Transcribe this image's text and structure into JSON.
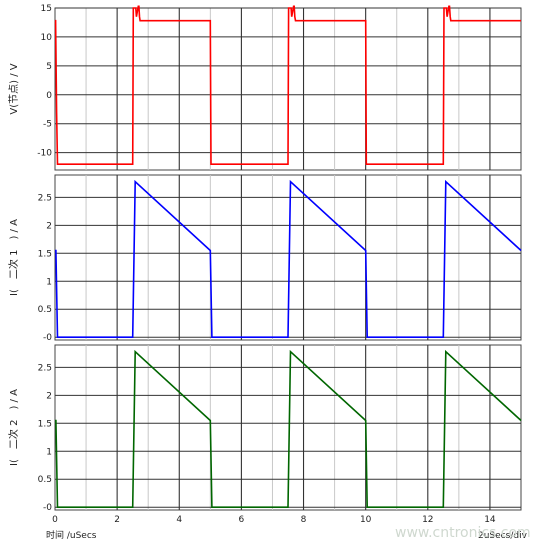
{
  "chart_data": [
    {
      "type": "line",
      "ylabel": "V(节点) / V",
      "ylim": [
        -13,
        15
      ],
      "yticks": [
        -10,
        -5,
        0,
        5,
        10,
        15
      ],
      "ytick_labels": [
        "-10",
        "-5",
        "0",
        "5",
        "10",
        "15"
      ],
      "grid": true,
      "color": "#ff0000",
      "series": [
        {
          "x": [
            0,
            0.02,
            0.05,
            0.08,
            2.5,
            2.52,
            2.6,
            2.62,
            2.68,
            2.7,
            2.72,
            2.74,
            5.0,
            5.02,
            7.5,
            7.52,
            7.6,
            7.62,
            7.68,
            7.7,
            7.72,
            7.74,
            10.0,
            10.02,
            12.5,
            12.52,
            12.6,
            12.62,
            12.68,
            12.7,
            12.72,
            12.74,
            15.0
          ],
          "y": [
            12.8,
            12.8,
            -3,
            -12,
            -12,
            15,
            15,
            13.5,
            15.3,
            15.3,
            13.5,
            12.8,
            12.8,
            -12,
            -12,
            15,
            15,
            13.5,
            15.3,
            15.3,
            13.5,
            12.8,
            12.8,
            -12,
            -12,
            15,
            15,
            13.5,
            15.3,
            15.3,
            13.5,
            12.8,
            12.8
          ]
        }
      ]
    },
    {
      "type": "line",
      "ylabel": "I(　二次 1　) / A",
      "ylim": [
        -0.05,
        2.9
      ],
      "yticks": [
        0,
        0.5,
        1,
        1.5,
        2,
        2.5
      ],
      "ytick_labels": [
        "-0",
        "0.5",
        "1",
        "1.5",
        "2",
        "2.5"
      ],
      "grid": true,
      "color": "#0000ff",
      "series": [
        {
          "x": [
            0,
            0.03,
            0.08,
            2.5,
            2.58,
            5.0,
            5.05,
            7.5,
            7.58,
            10.0,
            10.05,
            12.5,
            12.58,
            15.0
          ],
          "y": [
            1.55,
            1.55,
            0,
            0,
            2.78,
            1.55,
            0,
            0,
            2.78,
            1.55,
            0,
            0,
            2.78,
            1.55
          ]
        }
      ]
    },
    {
      "type": "line",
      "ylabel": "I(　二次 2　) / A",
      "ylim": [
        -0.05,
        2.9
      ],
      "yticks": [
        0,
        0.5,
        1,
        1.5,
        2,
        2.5
      ],
      "ytick_labels": [
        "-0",
        "0.5",
        "1",
        "1.5",
        "2",
        "2.5"
      ],
      "grid": true,
      "color": "#006600",
      "series": [
        {
          "x": [
            0,
            0.03,
            0.08,
            2.5,
            2.58,
            5.0,
            5.05,
            7.5,
            7.58,
            10.0,
            10.05,
            12.5,
            12.58,
            15.0
          ],
          "y": [
            1.55,
            1.55,
            0,
            0,
            2.78,
            1.55,
            0,
            0,
            2.78,
            1.55,
            0,
            0,
            2.78,
            1.55
          ]
        }
      ]
    }
  ],
  "x_axis": {
    "xlim": [
      0,
      15
    ],
    "xticks": [
      0,
      2,
      4,
      6,
      8,
      10,
      12,
      14
    ],
    "xtick_labels": [
      "0",
      "2",
      "4",
      "6",
      "8",
      "10",
      "12",
      "14"
    ],
    "xlabel": "时间 /uSecs",
    "scale_label": "2uSecs/div"
  },
  "watermark": "www.cntronics.com"
}
